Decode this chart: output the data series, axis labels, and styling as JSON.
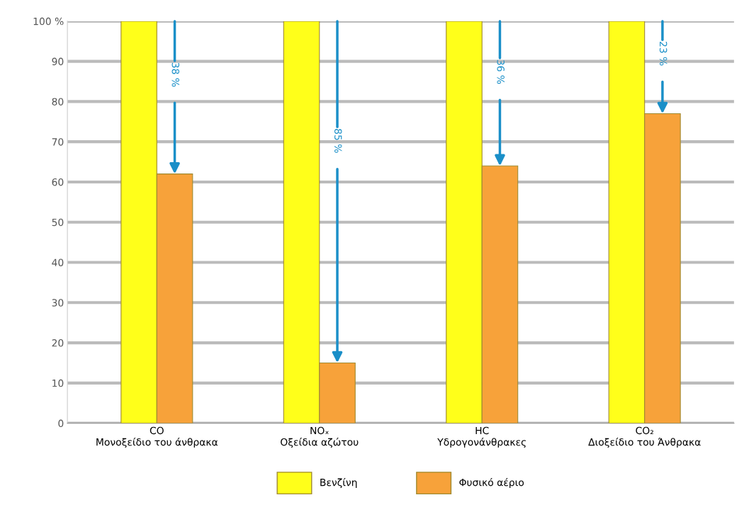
{
  "chart_data": {
    "type": "bar",
    "categories": [
      "CO\nΜονοξείδιο του άνθρακα",
      "NOₓ\nΟξείδια αζώτου",
      "HC\nΥδρογονάνθρακες",
      "CO₂\nΔιοξείδιο του Άνθρακα"
    ],
    "series": [
      {
        "name": "Βενζίνη",
        "color": "#ffff1a",
        "values": [
          100,
          100,
          100,
          100
        ]
      },
      {
        "name": "Φυσικό αέριο",
        "color": "#f7a23a",
        "values": [
          62,
          15,
          64,
          77
        ]
      }
    ],
    "ylim": [
      0,
      100
    ],
    "yticks": [
      0,
      10,
      20,
      30,
      40,
      50,
      60,
      70,
      80,
      90,
      {
        "value": 100,
        "label": "100 %"
      }
    ],
    "grid": "y",
    "legend": "bottom",
    "annotations": [
      "38 %",
      "85 %",
      "36 %",
      "23 %"
    ]
  }
}
